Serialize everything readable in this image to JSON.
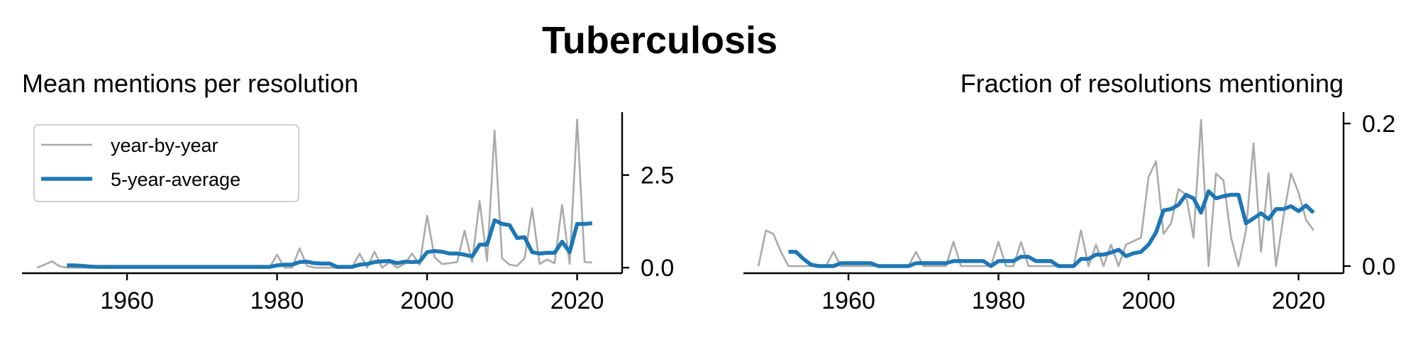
{
  "suptitle": "Tuberculosis",
  "colors": {
    "year_by_year": "#aaaaaa",
    "five_year_average": "#1f77b4",
    "axis": "#000000"
  },
  "chart_data": [
    {
      "type": "line",
      "title": "Mean mentions per resolution",
      "xlabel": "",
      "ylabel": "",
      "xlim": [
        1946,
        2026
      ],
      "ylim": [
        -0.15,
        4.2
      ],
      "xticks": [
        1960,
        1980,
        2000,
        2020
      ],
      "xtick_labels": [
        "1960",
        "1980",
        "2000",
        "2020"
      ],
      "yticks": [
        0.0,
        2.5
      ],
      "ytick_labels": [
        "0.0",
        "2.5"
      ],
      "y_axis_side": "right",
      "legend": {
        "position": "top-left",
        "entries": [
          "year-by-year",
          "5-year-average"
        ]
      },
      "grid": false,
      "series": [
        {
          "name": "year-by-year",
          "x": [
            1948,
            1949,
            1950,
            1951,
            1952,
            1953,
            1954,
            1955,
            1956,
            1957,
            1958,
            1959,
            1960,
            1961,
            1962,
            1963,
            1964,
            1965,
            1966,
            1967,
            1968,
            1969,
            1970,
            1971,
            1972,
            1973,
            1974,
            1975,
            1976,
            1977,
            1978,
            1979,
            1980,
            1981,
            1982,
            1983,
            1984,
            1985,
            1986,
            1987,
            1988,
            1989,
            1990,
            1991,
            1992,
            1993,
            1994,
            1995,
            1996,
            1997,
            1998,
            1999,
            2000,
            2001,
            2002,
            2003,
            2004,
            2005,
            2006,
            2007,
            2008,
            2009,
            2010,
            2011,
            2012,
            2013,
            2014,
            2015,
            2016,
            2017,
            2018,
            2019,
            2020,
            2021,
            2022
          ],
          "values": [
            0.0,
            0.08,
            0.17,
            0.04,
            0.0,
            0.0,
            0.0,
            0.0,
            0.0,
            0.0,
            0.0,
            0.0,
            0.0,
            0.0,
            0.0,
            0.0,
            0.0,
            0.0,
            0.0,
            0.0,
            0.0,
            0.0,
            0.0,
            0.0,
            0.0,
            0.0,
            0.0,
            0.0,
            0.0,
            0.0,
            0.0,
            0.0,
            0.35,
            0.0,
            0.0,
            0.52,
            0.05,
            0.0,
            0.0,
            0.0,
            0.0,
            0.0,
            0.0,
            0.38,
            0.0,
            0.43,
            0.0,
            0.15,
            0.0,
            0.1,
            0.38,
            0.08,
            1.4,
            0.28,
            0.1,
            0.12,
            0.15,
            1.0,
            0.15,
            1.8,
            0.18,
            3.7,
            0.25,
            0.08,
            0.05,
            0.25,
            1.6,
            0.1,
            0.22,
            0.12,
            1.7,
            0.1,
            4.0,
            0.15,
            0.14
          ]
        },
        {
          "name": "5-year-average",
          "x": [
            1952,
            1953,
            1954,
            1955,
            1956,
            1957,
            1958,
            1959,
            1960,
            1961,
            1962,
            1963,
            1964,
            1965,
            1966,
            1967,
            1968,
            1969,
            1970,
            1971,
            1972,
            1973,
            1974,
            1975,
            1976,
            1977,
            1978,
            1979,
            1980,
            1981,
            1982,
            1983,
            1984,
            1985,
            1986,
            1987,
            1988,
            1989,
            1990,
            1991,
            1992,
            1993,
            1994,
            1995,
            1996,
            1997,
            1998,
            1999,
            2000,
            2001,
            2002,
            2003,
            2004,
            2005,
            2006,
            2007,
            2008,
            2009,
            2010,
            2011,
            2012,
            2013,
            2014,
            2015,
            2016,
            2017,
            2018,
            2019,
            2020,
            2021,
            2022
          ],
          "values": [
            0.06,
            0.06,
            0.05,
            0.03,
            0.02,
            0.02,
            0.02,
            0.02,
            0.02,
            0.02,
            0.02,
            0.02,
            0.02,
            0.02,
            0.02,
            0.02,
            0.02,
            0.02,
            0.02,
            0.02,
            0.02,
            0.02,
            0.02,
            0.02,
            0.02,
            0.02,
            0.02,
            0.02,
            0.06,
            0.08,
            0.08,
            0.15,
            0.16,
            0.12,
            0.11,
            0.11,
            0.02,
            0.02,
            0.02,
            0.08,
            0.1,
            0.15,
            0.17,
            0.18,
            0.12,
            0.16,
            0.15,
            0.16,
            0.42,
            0.45,
            0.43,
            0.38,
            0.38,
            0.35,
            0.3,
            0.62,
            0.62,
            1.28,
            1.18,
            1.15,
            0.8,
            0.82,
            0.42,
            0.38,
            0.4,
            0.4,
            0.7,
            0.42,
            1.18,
            1.18,
            1.2
          ]
        }
      ]
    },
    {
      "type": "line",
      "title": "Fraction of resolutions mentioning",
      "xlabel": "",
      "ylabel": "",
      "xlim": [
        1946,
        2026
      ],
      "ylim": [
        -0.01,
        0.216
      ],
      "xticks": [
        1960,
        1980,
        2000,
        2020
      ],
      "xtick_labels": [
        "1960",
        "1980",
        "2000",
        "2020"
      ],
      "yticks": [
        0.0,
        0.2
      ],
      "ytick_labels": [
        "0.0",
        "0.2"
      ],
      "y_axis_side": "right",
      "grid": false,
      "series": [
        {
          "name": "year-by-year",
          "x": [
            1948,
            1949,
            1950,
            1951,
            1952,
            1953,
            1954,
            1955,
            1956,
            1957,
            1958,
            1959,
            1960,
            1961,
            1962,
            1963,
            1964,
            1965,
            1966,
            1967,
            1968,
            1969,
            1970,
            1971,
            1972,
            1973,
            1974,
            1975,
            1976,
            1977,
            1978,
            1979,
            1980,
            1981,
            1982,
            1983,
            1984,
            1985,
            1986,
            1987,
            1988,
            1989,
            1990,
            1991,
            1992,
            1993,
            1994,
            1995,
            1996,
            1997,
            1998,
            1999,
            2000,
            2001,
            2002,
            2003,
            2004,
            2005,
            2006,
            2007,
            2008,
            2009,
            2010,
            2011,
            2012,
            2013,
            2014,
            2015,
            2016,
            2017,
            2018,
            2019,
            2020,
            2021,
            2022
          ],
          "values": [
            0.0,
            0.05,
            0.045,
            0.02,
            0.0,
            0.0,
            0.0,
            0.0,
            0.0,
            0.0,
            0.02,
            0.0,
            0.0,
            0.0,
            0.0,
            0.0,
            0.0,
            0.0,
            0.0,
            0.0,
            0.0,
            0.02,
            0.0,
            0.0,
            0.0,
            0.0,
            0.034,
            0.0,
            0.0,
            0.0,
            0.0,
            0.0,
            0.034,
            0.0,
            0.0,
            0.034,
            0.0,
            0.0,
            0.0,
            0.0,
            0.0,
            0.0,
            0.0,
            0.05,
            0.0,
            0.03,
            0.0,
            0.03,
            0.0,
            0.03,
            0.035,
            0.04,
            0.125,
            0.147,
            0.045,
            0.06,
            0.108,
            0.1,
            0.04,
            0.205,
            0.0,
            0.13,
            0.12,
            0.04,
            0.0,
            0.05,
            0.172,
            0.02,
            0.13,
            0.0,
            0.07,
            0.13,
            0.103,
            0.065,
            0.05
          ]
        },
        {
          "name": "5-year-average",
          "x": [
            1952,
            1953,
            1954,
            1955,
            1956,
            1957,
            1958,
            1959,
            1960,
            1961,
            1962,
            1963,
            1964,
            1965,
            1966,
            1967,
            1968,
            1969,
            1970,
            1971,
            1972,
            1973,
            1974,
            1975,
            1976,
            1977,
            1978,
            1979,
            1980,
            1981,
            1982,
            1983,
            1984,
            1985,
            1986,
            1987,
            1988,
            1989,
            1990,
            1991,
            1992,
            1993,
            1994,
            1995,
            1996,
            1997,
            1998,
            1999,
            2000,
            2001,
            2002,
            2003,
            2004,
            2005,
            2006,
            2007,
            2008,
            2009,
            2010,
            2011,
            2012,
            2013,
            2014,
            2015,
            2016,
            2017,
            2018,
            2019,
            2020,
            2021,
            2022
          ],
          "values": [
            0.02,
            0.02,
            0.01,
            0.002,
            0.0,
            0.0,
            0.0,
            0.004,
            0.004,
            0.004,
            0.004,
            0.004,
            0.0,
            0.0,
            0.0,
            0.0,
            0.0,
            0.004,
            0.004,
            0.004,
            0.004,
            0.004,
            0.007,
            0.007,
            0.007,
            0.007,
            0.007,
            0.0,
            0.007,
            0.007,
            0.007,
            0.013,
            0.013,
            0.007,
            0.007,
            0.007,
            0.0,
            0.0,
            0.0,
            0.01,
            0.01,
            0.016,
            0.016,
            0.019,
            0.023,
            0.014,
            0.018,
            0.02,
            0.03,
            0.047,
            0.078,
            0.08,
            0.086,
            0.1,
            0.095,
            0.075,
            0.105,
            0.095,
            0.098,
            0.1,
            0.1,
            0.06,
            0.067,
            0.074,
            0.066,
            0.08,
            0.08,
            0.084,
            0.077,
            0.085,
            0.075
          ]
        }
      ]
    }
  ]
}
